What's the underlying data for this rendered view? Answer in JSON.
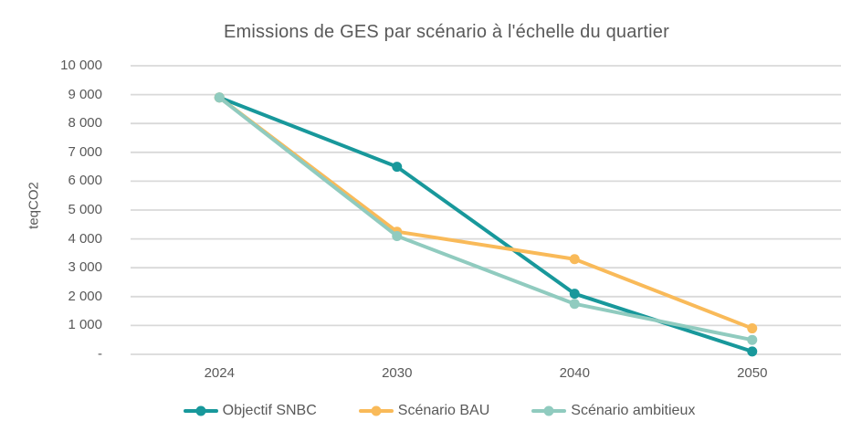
{
  "chart_data": {
    "type": "line",
    "title": "Emissions de GES par scénario à l'échelle du quartier",
    "xlabel": "",
    "ylabel": "teqCO2",
    "categories": [
      "2024",
      "2030",
      "2040",
      "2050"
    ],
    "series": [
      {
        "name": "Objectif SNBC",
        "color": "#18989B",
        "values": [
          8900,
          6500,
          2100,
          100
        ]
      },
      {
        "name": "Scénario BAU",
        "color": "#F9BA59",
        "values": [
          8900,
          4250,
          3300,
          900
        ]
      },
      {
        "name": "Scénario ambitieux",
        "color": "#90CBBF",
        "values": [
          8900,
          4100,
          1750,
          500
        ]
      }
    ],
    "ylim": [
      0,
      10000
    ],
    "ytick_step": 1000,
    "ytick_labels": [
      "-",
      "1 000",
      "2 000",
      "3 000",
      "4 000",
      "5 000",
      "6 000",
      "7 000",
      "8 000",
      "9 000",
      "10 000"
    ],
    "grid": true,
    "gridline_color": "#D9D9D9",
    "text_color": "#595959",
    "legend_position": "bottom"
  }
}
